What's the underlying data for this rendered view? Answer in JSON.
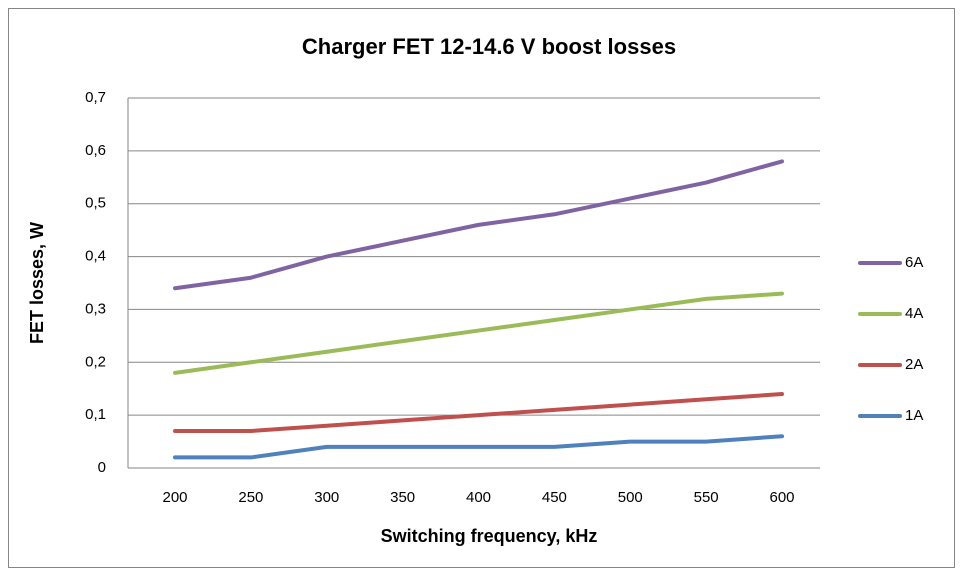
{
  "chart_data": {
    "type": "line",
    "title": "Charger FET 12-14.6 V boost losses",
    "x_label": "Switching frequency, kHz",
    "y_label": "FET losses, W",
    "categories": [
      "200",
      "250",
      "300",
      "350",
      "400",
      "450",
      "500",
      "550",
      "600"
    ],
    "series": [
      {
        "name": "1A",
        "color": "#4f81bd",
        "values": [
          0.02,
          0.02,
          0.04,
          0.04,
          0.04,
          0.04,
          0.05,
          0.05,
          0.06
        ]
      },
      {
        "name": "2A",
        "color": "#c0504d",
        "values": [
          0.07,
          0.07,
          0.08,
          0.09,
          0.1,
          0.11,
          0.12,
          0.13,
          0.14
        ]
      },
      {
        "name": "4A",
        "color": "#9bbb59",
        "values": [
          0.18,
          0.2,
          0.22,
          0.24,
          0.26,
          0.28,
          0.3,
          0.32,
          0.33
        ]
      },
      {
        "name": "6A",
        "color": "#8064a2",
        "values": [
          0.34,
          0.36,
          0.4,
          0.43,
          0.46,
          0.48,
          0.51,
          0.54,
          0.58
        ]
      }
    ],
    "ylim": [
      0,
      0.7
    ],
    "yticks": [
      0,
      {
        "value": 0.1,
        "label": "0,1"
      },
      {
        "value": 0.2,
        "label": "0,2"
      },
      {
        "value": 0.3,
        "label": "0,3"
      },
      {
        "value": 0.4,
        "label": "0,4"
      },
      {
        "value": 0.5,
        "label": "0,5"
      },
      {
        "value": 0.6,
        "label": "0,6"
      },
      {
        "value": 0.7,
        "label": "0,7"
      }
    ],
    "grid": true,
    "legend": "right"
  }
}
